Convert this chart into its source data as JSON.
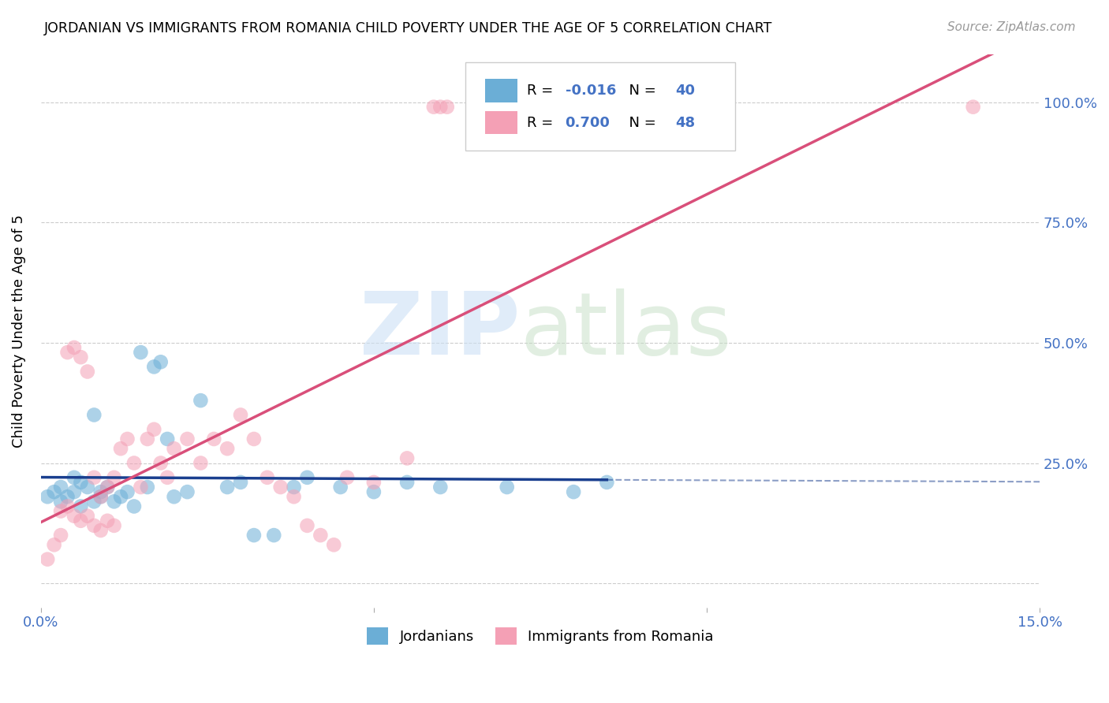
{
  "title": "JORDANIAN VS IMMIGRANTS FROM ROMANIA CHILD POVERTY UNDER THE AGE OF 5 CORRELATION CHART",
  "source": "Source: ZipAtlas.com",
  "ylabel_label": "Child Poverty Under the Age of 5",
  "xlim": [
    0.0,
    0.15
  ],
  "ylim": [
    -0.05,
    1.1
  ],
  "blue_color": "#6baed6",
  "pink_color": "#f4a0b5",
  "blue_line_color": "#1a3f8f",
  "pink_line_color": "#d94f7a",
  "accent_color": "#4472c4",
  "grid_color": "#cccccc",
  "legend_R_blue": "-0.016",
  "legend_N_blue": "40",
  "legend_R_pink": "0.700",
  "legend_N_pink": "48",
  "blue_scatter_x": [
    0.001,
    0.002,
    0.003,
    0.003,
    0.004,
    0.005,
    0.005,
    0.006,
    0.006,
    0.007,
    0.008,
    0.008,
    0.009,
    0.009,
    0.01,
    0.011,
    0.012,
    0.013,
    0.014,
    0.015,
    0.016,
    0.017,
    0.018,
    0.019,
    0.02,
    0.022,
    0.024,
    0.028,
    0.03,
    0.032,
    0.035,
    0.038,
    0.04,
    0.045,
    0.05,
    0.055,
    0.06,
    0.07,
    0.08,
    0.085
  ],
  "blue_scatter_y": [
    0.18,
    0.19,
    0.17,
    0.2,
    0.18,
    0.19,
    0.22,
    0.16,
    0.21,
    0.2,
    0.35,
    0.17,
    0.18,
    0.19,
    0.2,
    0.17,
    0.18,
    0.19,
    0.16,
    0.48,
    0.2,
    0.45,
    0.46,
    0.3,
    0.18,
    0.19,
    0.38,
    0.2,
    0.21,
    0.1,
    0.1,
    0.2,
    0.22,
    0.2,
    0.19,
    0.21,
    0.2,
    0.2,
    0.19,
    0.21
  ],
  "pink_scatter_x": [
    0.001,
    0.002,
    0.003,
    0.004,
    0.005,
    0.006,
    0.007,
    0.008,
    0.009,
    0.01,
    0.011,
    0.012,
    0.013,
    0.014,
    0.015,
    0.016,
    0.017,
    0.018,
    0.019,
    0.02,
    0.022,
    0.024,
    0.026,
    0.028,
    0.03,
    0.032,
    0.034,
    0.036,
    0.038,
    0.04,
    0.042,
    0.044,
    0.046,
    0.05,
    0.055,
    0.059,
    0.06,
    0.061,
    0.14,
    0.003,
    0.004,
    0.005,
    0.006,
    0.007,
    0.008,
    0.009,
    0.01,
    0.011
  ],
  "pink_scatter_y": [
    0.05,
    0.08,
    0.1,
    0.48,
    0.49,
    0.47,
    0.44,
    0.22,
    0.18,
    0.2,
    0.22,
    0.28,
    0.3,
    0.25,
    0.2,
    0.3,
    0.32,
    0.25,
    0.22,
    0.28,
    0.3,
    0.25,
    0.3,
    0.28,
    0.35,
    0.3,
    0.22,
    0.2,
    0.18,
    0.12,
    0.1,
    0.08,
    0.22,
    0.21,
    0.26,
    0.99,
    0.99,
    0.99,
    0.99,
    0.15,
    0.16,
    0.14,
    0.13,
    0.14,
    0.12,
    0.11,
    0.13,
    0.12
  ]
}
